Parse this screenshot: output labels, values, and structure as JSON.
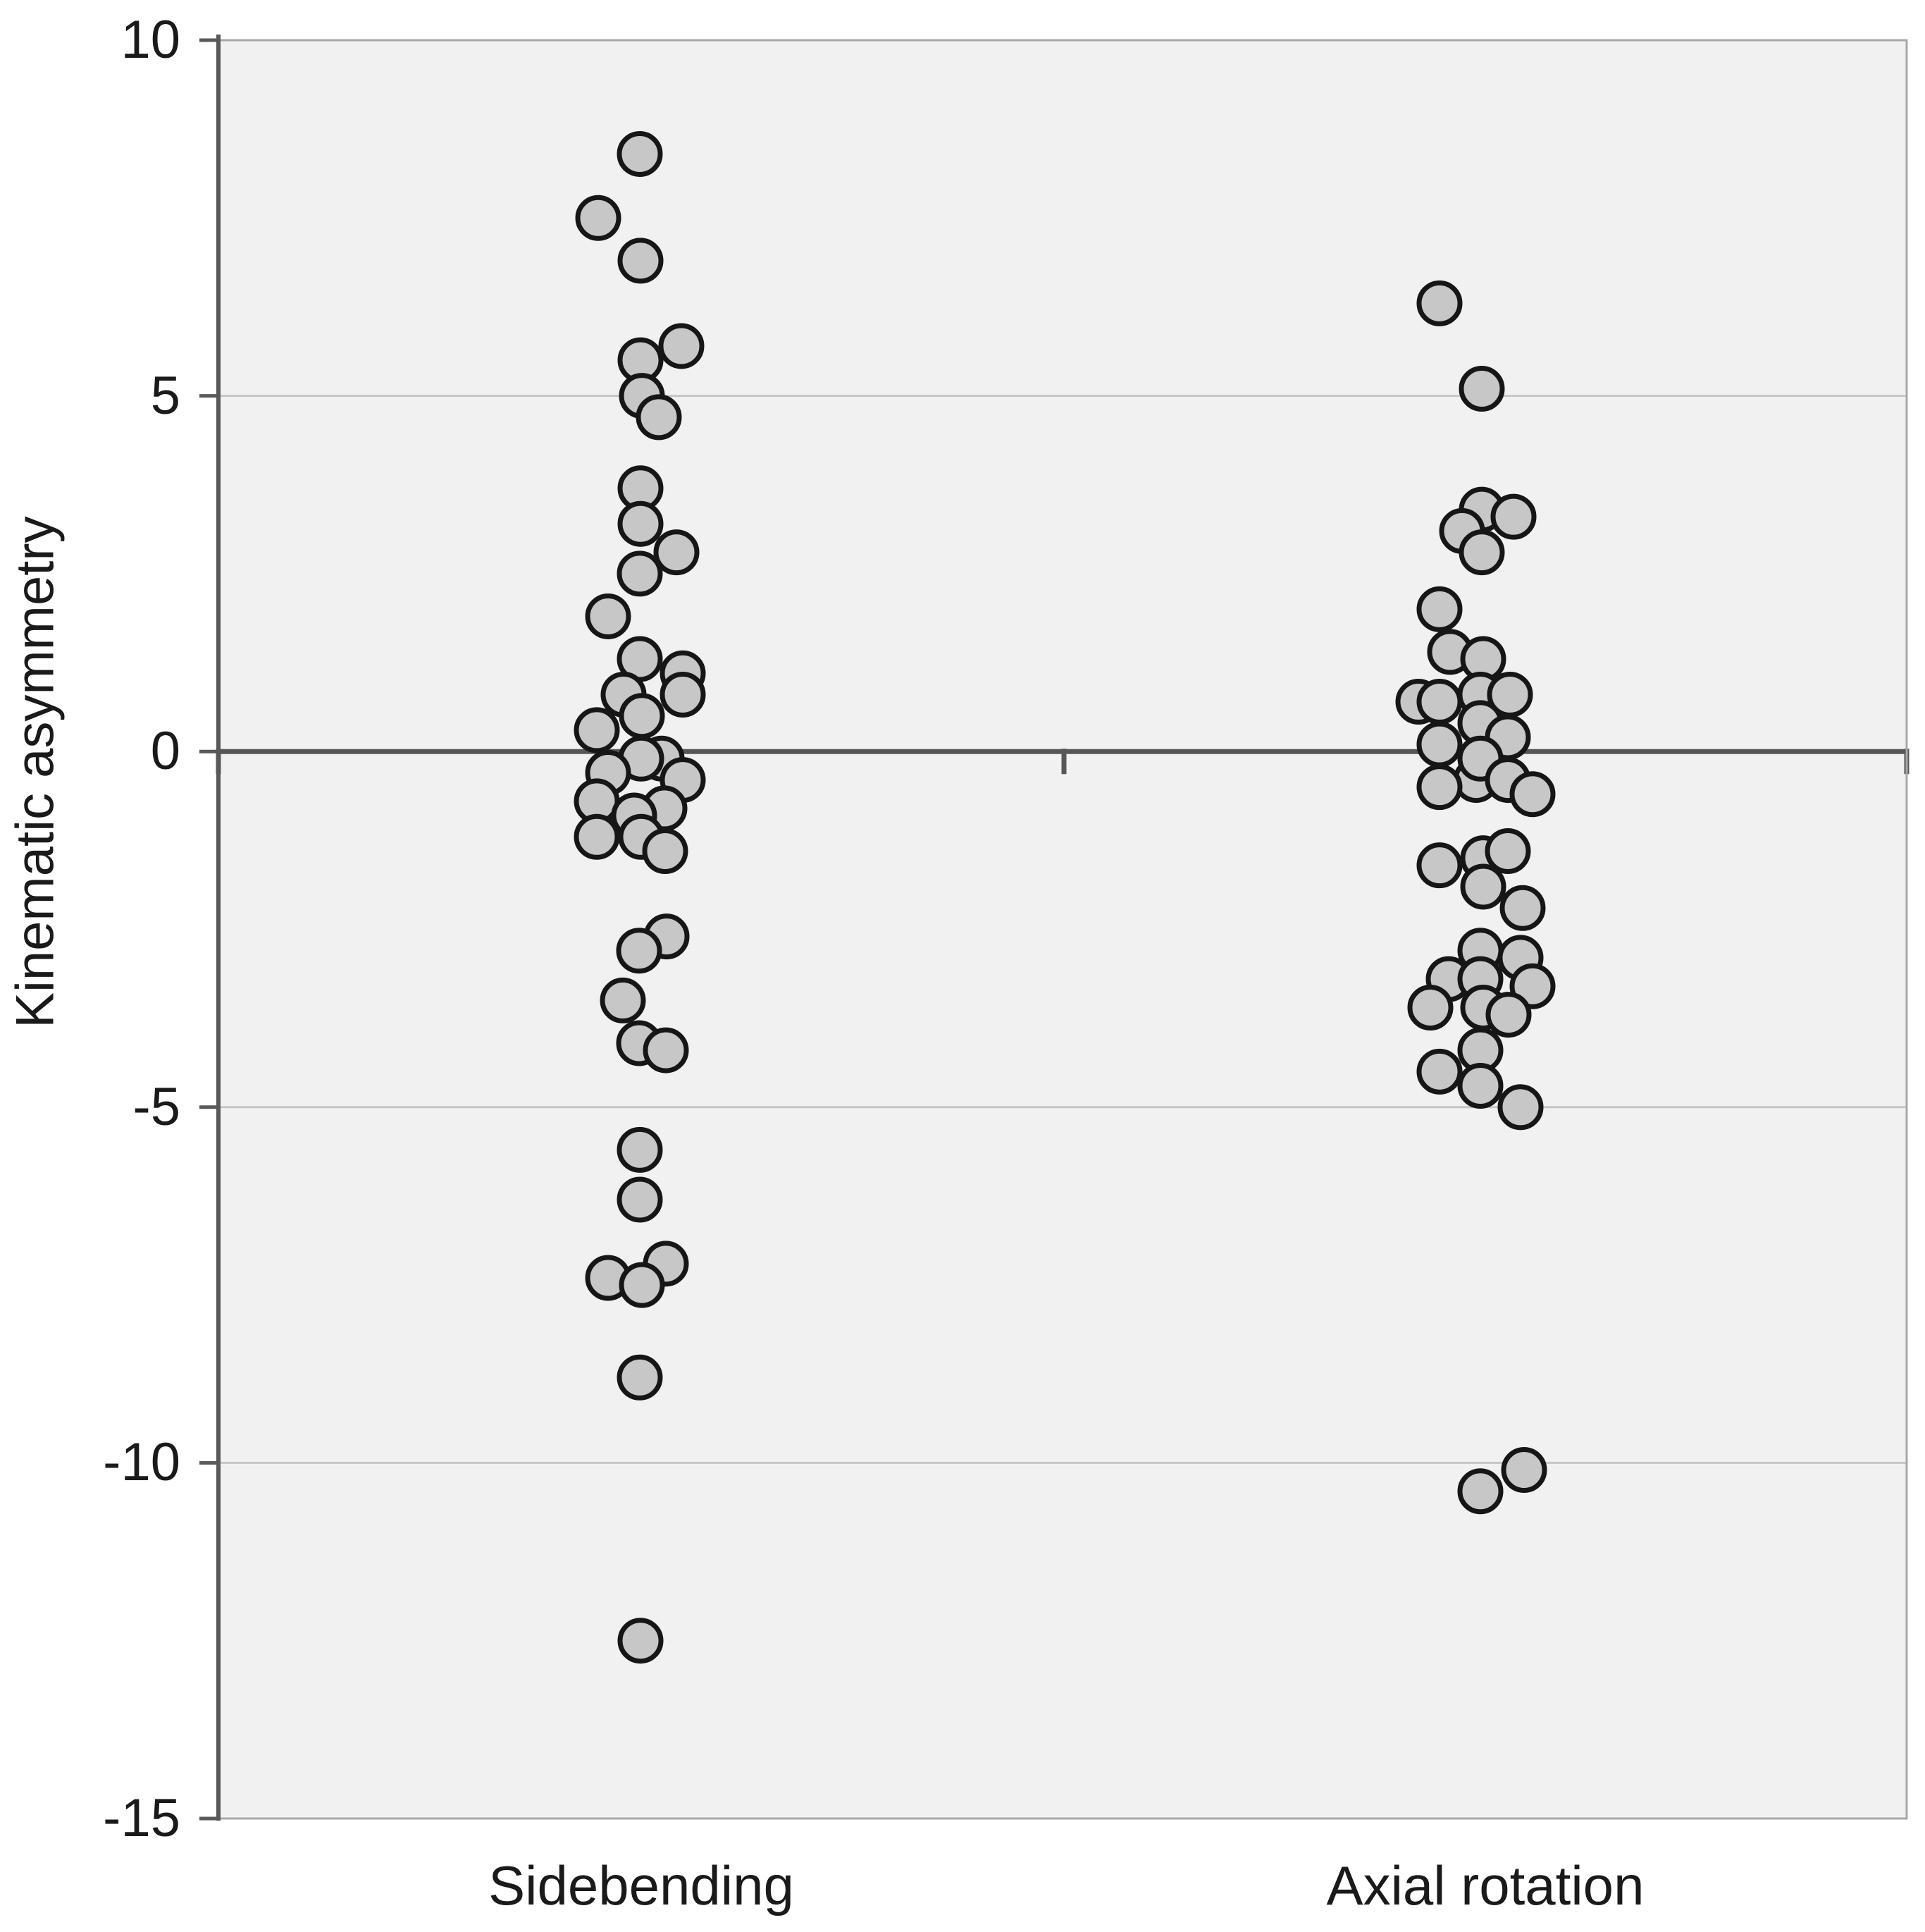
{
  "chart_data": {
    "type": "scatter",
    "title": "",
    "xlabel": "",
    "ylabel": "Kinematic asymmetry",
    "categories": [
      "Sidebending",
      "Axial rotation"
    ],
    "ylim": [
      -15,
      10
    ],
    "yticks": [
      10,
      5,
      0,
      -5,
      -10,
      -15
    ],
    "ytick_labels": [
      "10",
      "5",
      "0",
      "-5",
      "-10",
      "-15"
    ],
    "gridline_values": [
      5,
      -5,
      -10
    ],
    "zero_line_value": 0,
    "grid": true,
    "legend_position": "none",
    "colors": {
      "plot_background": "#f1f1f1",
      "point_fill": "#c7c7c7",
      "point_stroke": "#161616",
      "gridline": "#c6c6c6",
      "zero_line": "#575757",
      "axis_line": "#595959",
      "plot_border": "#a8a8a8",
      "text": "#1a1a1a"
    },
    "series": [
      {
        "name": "Sidebending",
        "points": [
          {
            "dx": -2,
            "v": 8.4
          },
          {
            "dx": -61,
            "v": 7.5
          },
          {
            "dx": -1,
            "v": 6.9
          },
          {
            "dx": 57,
            "v": 5.7
          },
          {
            "dx": -1,
            "v": 5.5
          },
          {
            "dx": 1,
            "v": 5.0
          },
          {
            "dx": 25,
            "v": 4.7
          },
          {
            "dx": -1,
            "v": 3.7
          },
          {
            "dx": -1,
            "v": 3.2
          },
          {
            "dx": 50,
            "v": 2.8
          },
          {
            "dx": -2,
            "v": 2.5
          },
          {
            "dx": -47,
            "v": 1.9
          },
          {
            "dx": -2,
            "v": 1.3
          },
          {
            "dx": 59,
            "v": 1.1
          },
          {
            "dx": -25,
            "v": 0.8
          },
          {
            "dx": 59,
            "v": 0.8
          },
          {
            "dx": 1,
            "v": 0.5
          },
          {
            "dx": -63,
            "v": 0.3
          },
          {
            "dx": 29,
            "v": -0.1
          },
          {
            "dx": 0,
            "v": -0.1
          },
          {
            "dx": -47,
            "v": -0.3
          },
          {
            "dx": 59,
            "v": -0.4
          },
          {
            "dx": -63,
            "v": -0.7
          },
          {
            "dx": 33,
            "v": -0.8
          },
          {
            "dx": -10,
            "v": -0.9
          },
          {
            "dx": 0,
            "v": -1.2
          },
          {
            "dx": -63,
            "v": -1.2
          },
          {
            "dx": 34,
            "v": -1.4
          },
          {
            "dx": 36,
            "v": -2.6
          },
          {
            "dx": -3,
            "v": -2.8
          },
          {
            "dx": -26,
            "v": -3.5
          },
          {
            "dx": -3,
            "v": -4.1
          },
          {
            "dx": 35,
            "v": -4.2
          },
          {
            "dx": -2,
            "v": -5.6
          },
          {
            "dx": -2,
            "v": -6.3
          },
          {
            "dx": 35,
            "v": -7.2
          },
          {
            "dx": -47,
            "v": -7.4
          },
          {
            "dx": 1,
            "v": -7.5
          },
          {
            "dx": -2,
            "v": -8.8
          },
          {
            "dx": -1,
            "v": -12.5
          }
        ]
      },
      {
        "name": "Axial rotation",
        "points": [
          {
            "dx": -65,
            "v": 6.3
          },
          {
            "dx": -5,
            "v": 5.1
          },
          {
            "dx": -5,
            "v": 3.4
          },
          {
            "dx": 40,
            "v": 3.3
          },
          {
            "dx": -33,
            "v": 3.1
          },
          {
            "dx": -5,
            "v": 2.8
          },
          {
            "dx": -65,
            "v": 2.0
          },
          {
            "dx": -50,
            "v": 1.4
          },
          {
            "dx": -3,
            "v": 1.3
          },
          {
            "dx": -95,
            "v": 0.7
          },
          {
            "dx": -65,
            "v": 0.7
          },
          {
            "dx": -7,
            "v": 0.8
          },
          {
            "dx": 35,
            "v": 0.8
          },
          {
            "dx": -7,
            "v": 0.4
          },
          {
            "dx": 32,
            "v": 0.2
          },
          {
            "dx": -65,
            "v": 0.1
          },
          {
            "dx": -13,
            "v": -0.4
          },
          {
            "dx": -7,
            "v": -0.1
          },
          {
            "dx": 32,
            "v": -0.4
          },
          {
            "dx": -65,
            "v": -0.5
          },
          {
            "dx": 67,
            "v": -0.6
          },
          {
            "dx": -65,
            "v": -1.6
          },
          {
            "dx": -3,
            "v": -1.5
          },
          {
            "dx": 32,
            "v": -1.4
          },
          {
            "dx": -3,
            "v": -1.9
          },
          {
            "dx": 53,
            "v": -2.2
          },
          {
            "dx": -7,
            "v": -2.8
          },
          {
            "dx": 50,
            "v": -2.9
          },
          {
            "dx": -52,
            "v": -3.2
          },
          {
            "dx": -7,
            "v": -3.2
          },
          {
            "dx": 67,
            "v": -3.3
          },
          {
            "dx": -78,
            "v": -3.6
          },
          {
            "dx": -3,
            "v": -3.6
          },
          {
            "dx": 33,
            "v": -3.7
          },
          {
            "dx": -7,
            "v": -4.2
          },
          {
            "dx": -65,
            "v": -4.5
          },
          {
            "dx": -7,
            "v": -4.7
          },
          {
            "dx": 50,
            "v": -5.0
          },
          {
            "dx": 55,
            "v": -10.1
          },
          {
            "dx": -7,
            "v": -10.4
          }
        ]
      }
    ]
  }
}
